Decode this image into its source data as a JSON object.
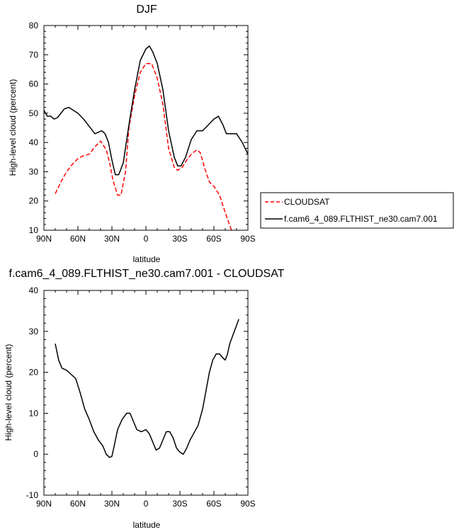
{
  "chart_data": [
    {
      "type": "line",
      "title": "DJF",
      "xlabel": "latitude",
      "ylabel": "High-level cloud (percent)",
      "xlim": [
        -90,
        90
      ],
      "ylim": [
        10,
        80
      ],
      "xticks": [
        -90,
        -60,
        -30,
        0,
        30,
        60,
        90
      ],
      "xtick_labels": [
        "90N",
        "60N",
        "30N",
        "0",
        "30S",
        "60S",
        "90S"
      ],
      "yticks": [
        10,
        20,
        30,
        40,
        50,
        60,
        70,
        80
      ],
      "ytick_labels": [
        "10",
        "20",
        "30",
        "40",
        "50",
        "60",
        "70",
        "80"
      ],
      "legend_position": "right",
      "series": [
        {
          "name": "CLOUDSAT",
          "color": "#ff0000",
          "dash": "dashed",
          "x": [
            -80,
            -75,
            -70,
            -65,
            -60,
            -55,
            -50,
            -45,
            -40,
            -35,
            -32,
            -29,
            -25,
            -22,
            -18,
            -15,
            -10,
            -5,
            0,
            5,
            10,
            15,
            20,
            25,
            28,
            32,
            36,
            40,
            45,
            48,
            52,
            56,
            60,
            65,
            70,
            75,
            80
          ],
          "values": [
            22.5,
            26.5,
            30,
            32.5,
            34.5,
            35.5,
            36,
            38.5,
            40.5,
            37.5,
            33,
            27,
            22,
            22,
            30,
            45,
            56,
            64,
            67,
            67,
            62,
            53,
            38,
            31.5,
            30.5,
            31.5,
            34,
            36,
            37.5,
            36.5,
            31,
            26.5,
            25,
            22,
            16,
            10.5,
            6
          ]
        },
        {
          "name": "f.cam6_4_089.FLTHIST_ne30.cam7.001",
          "color": "#000000",
          "dash": "solid",
          "x": [
            -90,
            -87,
            -84,
            -81,
            -78,
            -75,
            -72,
            -68,
            -64,
            -60,
            -55,
            -50,
            -45,
            -42,
            -39,
            -36,
            -33,
            -30,
            -27,
            -24,
            -20,
            -15,
            -10,
            -5,
            0,
            3,
            6,
            10,
            15,
            20,
            25,
            28,
            31,
            35,
            40,
            45,
            50,
            55,
            60,
            64,
            68,
            71,
            75,
            80,
            85,
            90
          ],
          "values": [
            51,
            49,
            49,
            48,
            48.5,
            50,
            51.5,
            52,
            51,
            50,
            48,
            45.5,
            43,
            43.5,
            44,
            43,
            40,
            34,
            29,
            29,
            33,
            46,
            58,
            68,
            72,
            73,
            71,
            67,
            58,
            44,
            35,
            32,
            32,
            35,
            41,
            44,
            44,
            46,
            48,
            49,
            46,
            43,
            43,
            43,
            40,
            36
          ]
        }
      ]
    },
    {
      "type": "line",
      "title": "f.cam6_4_089.FLTHIST_ne30.cam7.001 - CLOUDSAT",
      "xlabel": "latitude",
      "ylabel": "High-level cloud (percent)",
      "xlim": [
        -90,
        90
      ],
      "ylim": [
        -10,
        40
      ],
      "xticks": [
        -90,
        -60,
        -30,
        0,
        30,
        60,
        90
      ],
      "xtick_labels": [
        "90N",
        "60N",
        "30N",
        "0",
        "30S",
        "60S",
        "90S"
      ],
      "yticks": [
        -10,
        0,
        10,
        20,
        30,
        40
      ],
      "ytick_labels": [
        "-10",
        "0",
        "10",
        "20",
        "30",
        "40"
      ],
      "series": [
        {
          "color": "#000000",
          "dash": "solid",
          "x": [
            -80,
            -77,
            -74,
            -70,
            -66,
            -62,
            -58,
            -54,
            -50,
            -46,
            -42,
            -38,
            -35,
            -32,
            -30,
            -28,
            -25,
            -21,
            -17,
            -14,
            -11,
            -8,
            -4,
            0,
            3,
            6,
            9,
            12,
            15,
            18,
            21,
            24,
            27,
            30,
            33,
            36,
            39,
            42,
            46,
            50,
            53,
            56,
            59,
            62,
            65,
            68,
            70,
            72,
            74,
            76,
            78,
            80,
            82
          ],
          "values": [
            27,
            23,
            21,
            20.5,
            19.5,
            18.5,
            15,
            11,
            8.5,
            5.5,
            3.5,
            2,
            0,
            -0.8,
            -0.5,
            2,
            6,
            8.5,
            10,
            10,
            8,
            6,
            5.5,
            6,
            5,
            3,
            1,
            1.5,
            3.5,
            5.5,
            5.5,
            4,
            1.5,
            0.5,
            0,
            1.5,
            3.5,
            5,
            7,
            11,
            15.5,
            20,
            23,
            24.5,
            24.5,
            23.5,
            23,
            24.5,
            27,
            28.5,
            30,
            31.5,
            33
          ]
        }
      ]
    }
  ]
}
